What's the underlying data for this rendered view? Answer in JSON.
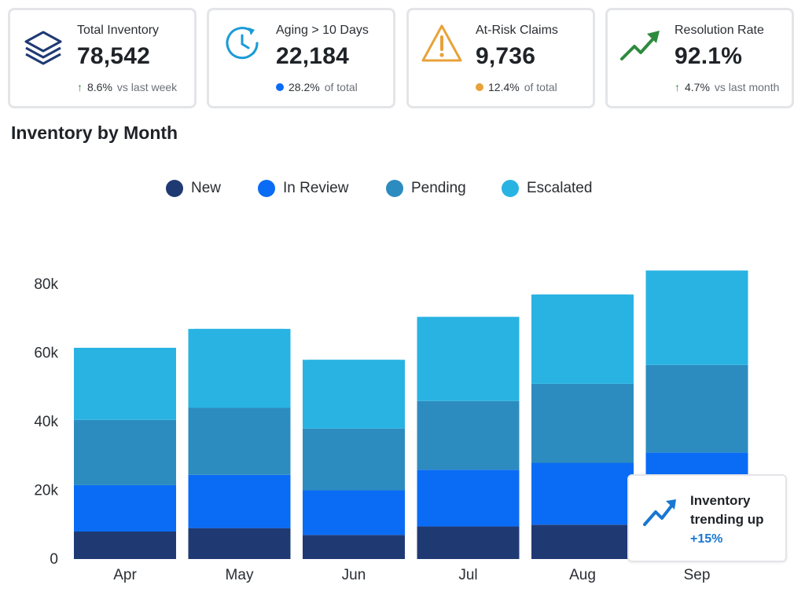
{
  "kpis": [
    {
      "title": "Total Inventory",
      "value": "78,542",
      "indicator": "↑",
      "delta": "8.6%",
      "suffix": "vs last week",
      "icon": "layers-icon",
      "accent": "#1f3a73"
    },
    {
      "title": "Aging > 10 Days",
      "value": "22,184",
      "indicator_color": "#0a6cf5",
      "delta": "28.2%",
      "suffix": "of total",
      "icon": "clock-refresh-icon",
      "accent": "#1a9bd7"
    },
    {
      "title": "At-Risk Claims",
      "value": "9,736",
      "indicator_color": "#e8a23a",
      "delta": "12.4%",
      "suffix": "of total",
      "icon": "warning-icon",
      "accent": "#e8a23a"
    },
    {
      "title": "Resolution Rate",
      "value": "92.1%",
      "indicator": "↑",
      "delta": "4.7%",
      "suffix": "vs last month",
      "icon": "trend-up-icon",
      "accent": "#2e8b3e"
    }
  ],
  "section_title": "Inventory by Month",
  "callout": {
    "title": "Inventory trending up",
    "value": "+15%",
    "icon": "trend-up-icon",
    "accent": "#1877d2"
  },
  "chart_data": {
    "type": "bar",
    "stacked": true,
    "categories": [
      "Apr",
      "May",
      "Jun",
      "Jul",
      "Aug",
      "Sep"
    ],
    "series": [
      {
        "name": "New",
        "color": "#1f3a73",
        "values": [
          8000,
          9000,
          7000,
          9500,
          10000,
          10000
        ]
      },
      {
        "name": "In Review",
        "color": "#0a6cf5",
        "values": [
          13500,
          15500,
          13000,
          16500,
          18000,
          21000
        ]
      },
      {
        "name": "Pending",
        "color": "#2d8cbf",
        "values": [
          19000,
          19500,
          18000,
          20000,
          23000,
          25500
        ]
      },
      {
        "name": "Escalated",
        "color": "#29b3e3",
        "values": [
          21000,
          23000,
          20000,
          24500,
          26000,
          27500
        ]
      }
    ],
    "yticks": [
      0,
      20000,
      40000,
      60000,
      80000
    ],
    "ytick_labels": [
      "0",
      "20k",
      "40k",
      "60k",
      "80k"
    ],
    "ylim": [
      0,
      90000
    ],
    "grid": false,
    "legend_position": "top-center"
  }
}
